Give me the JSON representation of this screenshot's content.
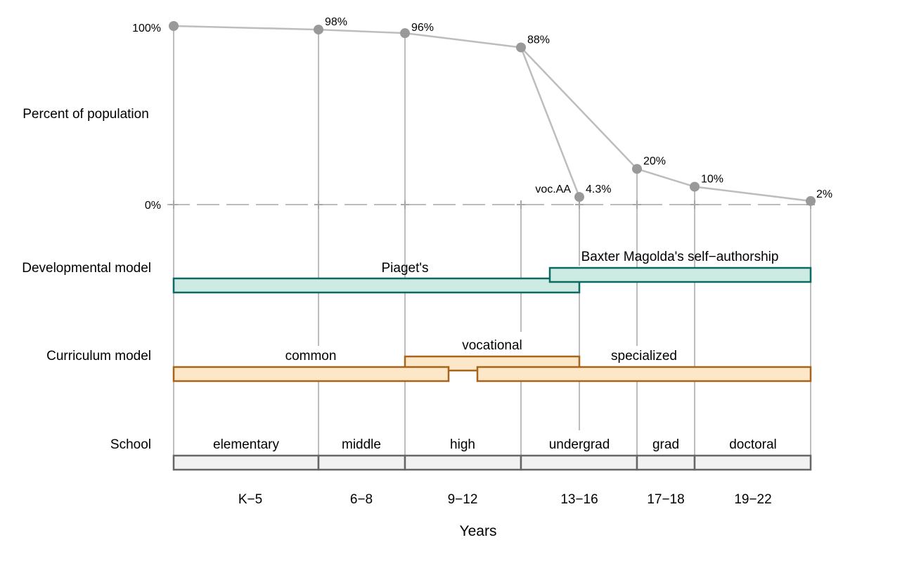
{
  "row_labels": {
    "percent": "Percent of population",
    "developmental": "Developmental model",
    "curriculum": "Curriculum model",
    "school": "School"
  },
  "axis": {
    "top_label": "100%",
    "zero_label": "0%",
    "x_title": "Years"
  },
  "chart_data": {
    "type": "line",
    "ylim": [
      0,
      100
    ],
    "points": [
      {
        "stage": "K-5",
        "value": 100,
        "label": ""
      },
      {
        "stage": "6-8",
        "value": 98,
        "label": "98%"
      },
      {
        "stage": "9-12",
        "value": 96,
        "label": "96%"
      },
      {
        "stage": "13-16",
        "value": 88,
        "label": "88%"
      },
      {
        "stage": "voc.AA",
        "value": 4.3,
        "label": "4.3%"
      },
      {
        "stage": "17-18",
        "value": 20,
        "label": "20%"
      },
      {
        "stage": "19-22",
        "value": 10,
        "label": "10%"
      },
      {
        "stage": "end",
        "value": 2,
        "label": "2%"
      }
    ],
    "voc_label": "voc.AA"
  },
  "developmental": {
    "piaget": "Piaget's",
    "baxter": "Baxter Magolda's self−authorship"
  },
  "curriculum": {
    "common": "common",
    "vocational": "vocational",
    "specialized": "specialized"
  },
  "school": {
    "levels": [
      "elementary",
      "middle",
      "high",
      "undergrad",
      "grad",
      "doctoral"
    ],
    "years": [
      "K−5",
      "6−8",
      "9−12",
      "13−16",
      "17−18",
      "19−22"
    ]
  }
}
